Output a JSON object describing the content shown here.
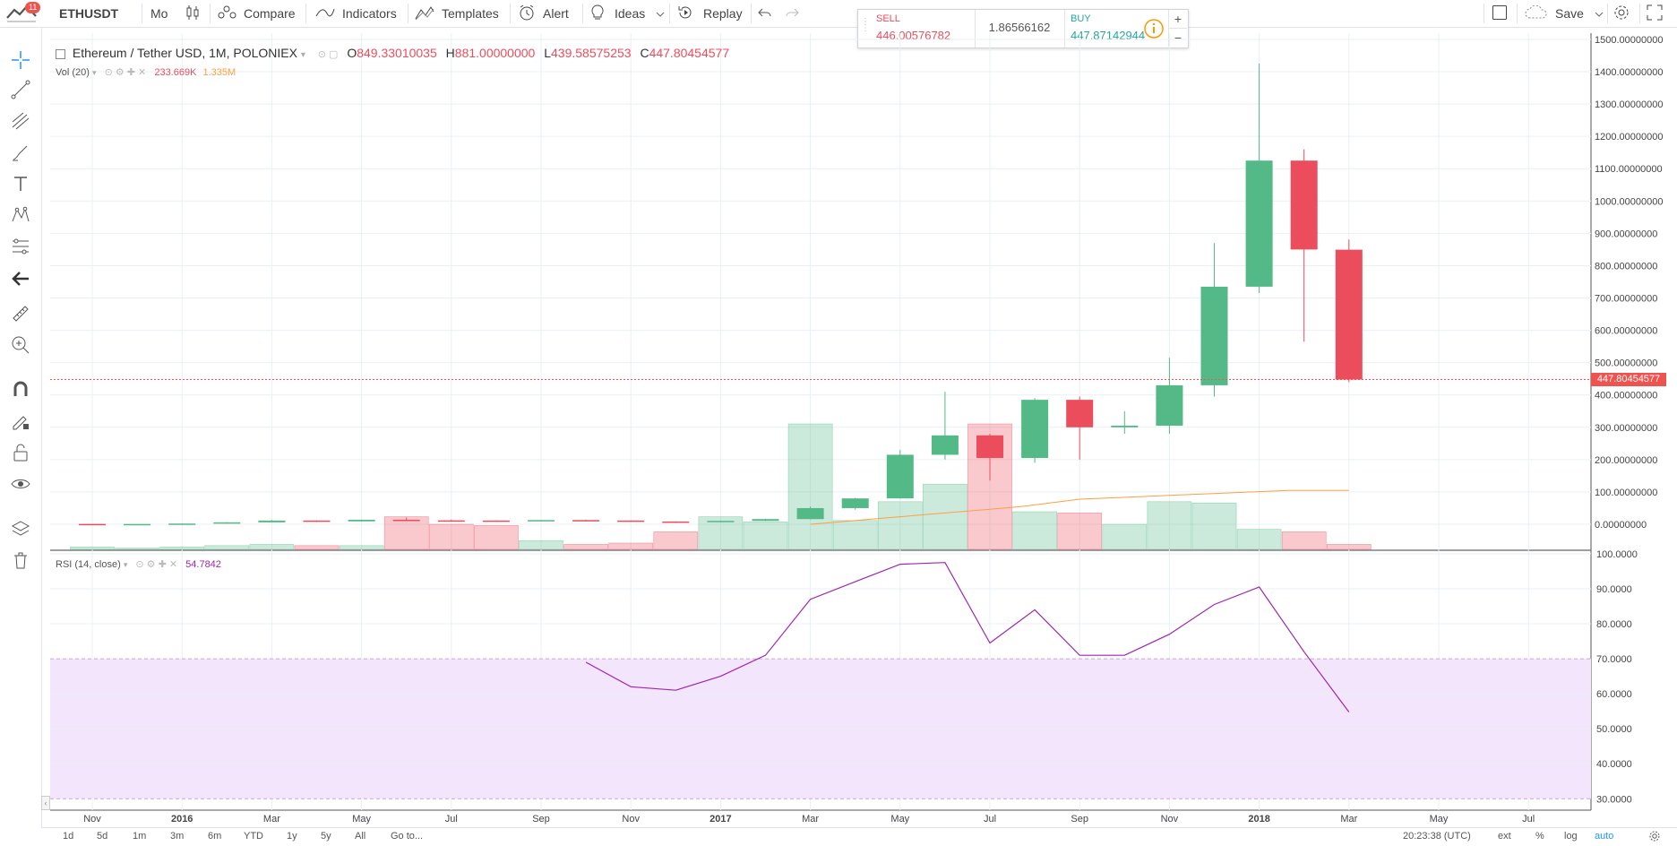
{
  "toolbar": {
    "alerts_badge": "11",
    "symbol": "ETHUSDT",
    "interval": "Mo",
    "compare": "Compare",
    "indicators": "Indicators",
    "templates": "Templates",
    "alert": "Alert",
    "ideas": "Ideas",
    "replay": "Replay",
    "save": "Save"
  },
  "trade": {
    "sell_label": "SELL",
    "sell_price": "446.00576782",
    "spread": "1.86566162",
    "buy_label": "BUY",
    "buy_price": "447.87142944",
    "plus": "+",
    "minus": "−"
  },
  "legend": {
    "title": "Ethereum / Tether USD, 1M, POLONIEX",
    "o_label": "O",
    "o_value": "849.33010035",
    "h_label": "H",
    "h_value": "881.00000000",
    "l_label": "L",
    "l_value": "439.58575253",
    "c_label": "C",
    "c_value": "447.80454577",
    "vol_label": "Vol (20)",
    "vol_value": "233.669K",
    "vol_ma_value": "1.335M",
    "rsi_label": "RSI (14, close)",
    "rsi_value": "54.7842"
  },
  "colors": {
    "up": "#53b987",
    "down": "#eb4d5c",
    "rsi_line": "#9c27b0",
    "rsi_band": "#f3e5fb",
    "vol_ma": "#ff9e40",
    "accent": "#2196f3"
  },
  "current_price_label": "447.80454577",
  "chart_data": [
    {
      "type": "candlestick",
      "title": "Ethereum / Tether USD, 1M, POLONIEX",
      "y_ticks": [
        "1500.00000000",
        "1400.00000000",
        "1300.00000000",
        "1200.00000000",
        "1100.00000000",
        "1000.00000000",
        "900.00000000",
        "800.00000000",
        "700.00000000",
        "600.00000000",
        "500.00000000",
        "400.00000000",
        "300.00000000",
        "200.00000000",
        "100.00000000",
        "0.00000000"
      ],
      "ylim": [
        -70,
        1510
      ],
      "x_ticks": [
        "Nov",
        "2016",
        "Mar",
        "May",
        "Jul",
        "Sep",
        "Nov",
        "2017",
        "Mar",
        "May",
        "Jul",
        "Sep",
        "Nov",
        "2018",
        "Mar",
        "May",
        "Jul"
      ],
      "candles": [
        {
          "date": "2015-11",
          "o": 1,
          "h": 1,
          "l": 0.8,
          "c": 0.9
        },
        {
          "date": "2015-12",
          "o": 0.9,
          "h": 1,
          "l": 0.8,
          "c": 0.9
        },
        {
          "date": "2016-01",
          "o": 0.9,
          "h": 2.5,
          "l": 0.9,
          "c": 2.2
        },
        {
          "date": "2016-02",
          "o": 2.2,
          "h": 6.5,
          "l": 2.1,
          "c": 6
        },
        {
          "date": "2016-03",
          "o": 6,
          "h": 13,
          "l": 6,
          "c": 11.5
        },
        {
          "date": "2016-04",
          "o": 11.5,
          "h": 12,
          "l": 7,
          "c": 9
        },
        {
          "date": "2016-05",
          "o": 9,
          "h": 14.5,
          "l": 8,
          "c": 14
        },
        {
          "date": "2016-06",
          "o": 14,
          "h": 21,
          "l": 10.5,
          "c": 12
        },
        {
          "date": "2016-07",
          "o": 12,
          "h": 14.5,
          "l": 9.5,
          "c": 11.5
        },
        {
          "date": "2016-08",
          "o": 11.5,
          "h": 12,
          "l": 10,
          "c": 11
        },
        {
          "date": "2016-09",
          "o": 11,
          "h": 13,
          "l": 11,
          "c": 13
        },
        {
          "date": "2016-10",
          "o": 13,
          "h": 14,
          "l": 11,
          "c": 11.5
        },
        {
          "date": "2016-11",
          "o": 11.5,
          "h": 12,
          "l": 8,
          "c": 8.5
        },
        {
          "date": "2016-12",
          "o": 8.5,
          "h": 9,
          "l": 6,
          "c": 8
        },
        {
          "date": "2017-01",
          "o": 8,
          "h": 11.5,
          "l": 8,
          "c": 10.5
        },
        {
          "date": "2017-02",
          "o": 10.5,
          "h": 17,
          "l": 10,
          "c": 16
        },
        {
          "date": "2017-03",
          "o": 16,
          "h": 55,
          "l": 15,
          "c": 50
        },
        {
          "date": "2017-04",
          "o": 50,
          "h": 82,
          "l": 45,
          "c": 80
        },
        {
          "date": "2017-05",
          "o": 80,
          "h": 230,
          "l": 79,
          "c": 215
        },
        {
          "date": "2017-06",
          "o": 215,
          "h": 410,
          "l": 200,
          "c": 275
        },
        {
          "date": "2017-07",
          "o": 275,
          "h": 280,
          "l": 135,
          "c": 205
        },
        {
          "date": "2017-08",
          "o": 205,
          "h": 390,
          "l": 190,
          "c": 385
        },
        {
          "date": "2017-09",
          "o": 385,
          "h": 395,
          "l": 200,
          "c": 300
        },
        {
          "date": "2017-10",
          "o": 300,
          "h": 350,
          "l": 280,
          "c": 305
        },
        {
          "date": "2017-11",
          "o": 305,
          "h": 515,
          "l": 280,
          "c": 430
        },
        {
          "date": "2017-12",
          "o": 430,
          "h": 870,
          "l": 395,
          "c": 735
        },
        {
          "date": "2018-01",
          "o": 735,
          "h": 1425,
          "l": 715,
          "c": 1125
        },
        {
          "date": "2018-02",
          "o": 1125,
          "h": 1160,
          "l": 565,
          "c": 850
        },
        {
          "date": "2018-03",
          "o": 849.33010035,
          "h": 881,
          "l": 439.58575253,
          "c": 447.80454577
        }
      ]
    },
    {
      "type": "bar",
      "title": "Vol (20)",
      "note": "volume relative scale 0-1",
      "values": [
        0.02,
        0.01,
        0.02,
        0.03,
        0.04,
        0.03,
        0.03,
        0.26,
        0.2,
        0.19,
        0.07,
        0.04,
        0.05,
        0.14,
        0.26,
        0.22,
        1.0,
        0.23,
        0.38,
        0.52,
        1.0,
        0.3,
        0.29,
        0.2,
        0.38,
        0.37,
        0.16,
        0.14,
        0.04
      ],
      "up": [
        true,
        true,
        true,
        true,
        true,
        false,
        true,
        false,
        false,
        false,
        true,
        false,
        false,
        false,
        true,
        true,
        true,
        true,
        true,
        true,
        false,
        true,
        false,
        true,
        true,
        true,
        true,
        false,
        false
      ],
      "ma_values": [
        0.2,
        0.22,
        0.24,
        0.26,
        0.28,
        0.3,
        0.32,
        0.34,
        0.37,
        0.4,
        0.41,
        0.42,
        0.43,
        0.44,
        0.45,
        0.46,
        0.47,
        0.47,
        0.47
      ]
    },
    {
      "type": "line",
      "title": "RSI (14, close)",
      "y_ticks": [
        "100.0000",
        "90.0000",
        "80.0000",
        "70.0000",
        "60.0000",
        "50.0000",
        "40.0000",
        "30.0000"
      ],
      "ylim": [
        27,
        101
      ],
      "band": [
        30,
        70
      ],
      "x": [
        "2016-10",
        "2016-11",
        "2016-12",
        "2017-01",
        "2017-02",
        "2017-03",
        "2017-04",
        "2017-05",
        "2017-06",
        "2017-07",
        "2017-08",
        "2017-09",
        "2017-10",
        "2017-11",
        "2017-12",
        "2018-01",
        "2018-02",
        "2018-03"
      ],
      "values": [
        69,
        62,
        61,
        65,
        71,
        87,
        92,
        97,
        97.5,
        74.5,
        84,
        71,
        71,
        77,
        85.5,
        90.5,
        72,
        54.78
      ]
    }
  ],
  "bottom": {
    "ranges": [
      "1d",
      "5d",
      "1m",
      "3m",
      "6m",
      "YTD",
      "1y",
      "5y",
      "All"
    ],
    "goto": "Go to...",
    "time": "20:23:38 (UTC)",
    "ext": "ext",
    "pct": "%",
    "log": "log",
    "auto": "auto"
  }
}
